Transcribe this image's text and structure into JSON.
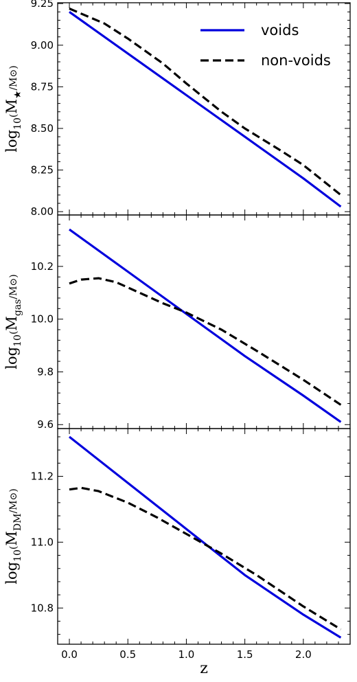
{
  "chart_data": [
    {
      "type": "line",
      "ylabel": "log10(M★/M⊙)",
      "xlim": [
        -0.1,
        2.4
      ],
      "ylim": [
        7.98,
        9.255
      ],
      "yticks": [
        8.0,
        8.25,
        8.5,
        8.75,
        9.0,
        9.25
      ],
      "ytick_labels": [
        "8.00",
        "8.25",
        "8.50",
        "8.75",
        "9.00",
        "9.25"
      ],
      "legend": {
        "position": "top-right",
        "entries": [
          {
            "label": "voids",
            "style": "solid",
            "color": "#0000dd"
          },
          {
            "label": "non-voids",
            "style": "dashed",
            "color": "#000000"
          }
        ]
      },
      "series": [
        {
          "name": "voids",
          "color": "#0000dd",
          "style": "solid",
          "x": [
            0.0,
            0.5,
            1.0,
            1.5,
            2.0,
            2.32
          ],
          "y": [
            9.2,
            8.95,
            8.7,
            8.45,
            8.2,
            8.03
          ]
        },
        {
          "name": "non-voids",
          "color": "#000000",
          "style": "dashed",
          "x": [
            0.0,
            0.3,
            0.5,
            0.8,
            1.0,
            1.3,
            1.5,
            1.8,
            2.0,
            2.32
          ],
          "y": [
            9.22,
            9.13,
            9.04,
            8.89,
            8.77,
            8.6,
            8.5,
            8.37,
            8.28,
            8.1
          ]
        }
      ]
    },
    {
      "type": "line",
      "ylabel": "log10(Mgas/M⊙)",
      "xlim": [
        -0.1,
        2.4
      ],
      "ylim": [
        9.585,
        10.395
      ],
      "yticks": [
        9.6,
        9.8,
        10.0,
        10.2
      ],
      "ytick_labels": [
        "9.6",
        "9.8",
        "10.0",
        "10.2"
      ],
      "series": [
        {
          "name": "voids",
          "color": "#0000dd",
          "style": "solid",
          "x": [
            0.0,
            0.5,
            1.0,
            1.5,
            2.0,
            2.32
          ],
          "y": [
            10.34,
            10.18,
            10.02,
            9.86,
            9.71,
            9.61
          ]
        },
        {
          "name": "non-voids",
          "color": "#000000",
          "style": "dashed",
          "x": [
            0.0,
            0.1,
            0.25,
            0.4,
            0.6,
            0.8,
            1.0,
            1.3,
            1.6,
            2.0,
            2.32
          ],
          "y": [
            10.135,
            10.15,
            10.155,
            10.14,
            10.1,
            10.06,
            10.025,
            9.96,
            9.88,
            9.77,
            9.675
          ]
        }
      ]
    },
    {
      "type": "line",
      "ylabel": "log10(MDM/M⊙)",
      "xlabel": "z",
      "xlim": [
        -0.1,
        2.4
      ],
      "ylim": [
        10.69,
        11.345
      ],
      "yticks": [
        10.8,
        11.0,
        11.2
      ],
      "ytick_labels": [
        "10.8",
        "11.0",
        "11.2"
      ],
      "xticks": [
        0.0,
        0.5,
        1.0,
        1.5,
        2.0
      ],
      "xtick_labels": [
        "0.0",
        "0.5",
        "1.0",
        "1.5",
        "2.0"
      ],
      "series": [
        {
          "name": "voids",
          "color": "#0000dd",
          "style": "solid",
          "x": [
            0.0,
            0.5,
            1.0,
            1.5,
            2.0,
            2.32
          ],
          "y": [
            11.32,
            11.18,
            11.04,
            10.9,
            10.78,
            10.71
          ]
        },
        {
          "name": "non-voids",
          "color": "#000000",
          "style": "dashed",
          "x": [
            0.0,
            0.1,
            0.25,
            0.5,
            0.75,
            1.0,
            1.3,
            1.6,
            2.0,
            2.32
          ],
          "y": [
            11.16,
            11.165,
            11.155,
            11.12,
            11.075,
            11.025,
            10.965,
            10.9,
            10.805,
            10.735
          ]
        }
      ]
    }
  ]
}
